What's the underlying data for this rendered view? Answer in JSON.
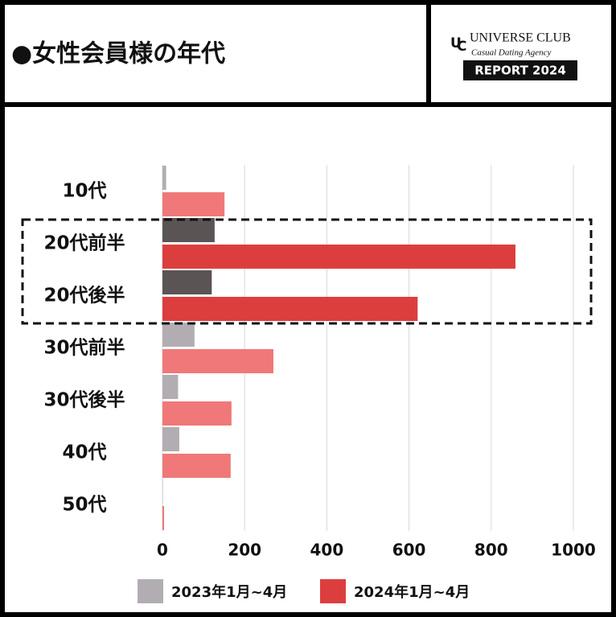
{
  "header": {
    "title": "●女性会員様の年代",
    "brand": "UNIVERSE CLUB",
    "tagline": "Casual Dating Agency",
    "report": "REPORT 2024"
  },
  "chart_data": {
    "type": "hbar",
    "categories": [
      "10代",
      "20代前半",
      "20代後半",
      "30代前半",
      "30代後半",
      "40代",
      "50代"
    ],
    "series": [
      {
        "name": "2023年1月~4月",
        "color": "#b2adb3",
        "colors": [
          "#b2adb3",
          "#5a5454",
          "#5a5454",
          "#b2adb3",
          "#b2adb3",
          "#b2adb3",
          "#b2adb3"
        ],
        "values": [
          9,
          127,
          120,
          78,
          38,
          41,
          1
        ]
      },
      {
        "name": "2024年1月~4月",
        "color": "#dc3e3e",
        "colors": [
          "#f07878",
          "#dc3e3e",
          "#dc3e3e",
          "#f07878",
          "#f07878",
          "#f07878",
          "#f07878"
        ],
        "values": [
          151,
          859,
          621,
          270,
          168,
          166,
          4
        ]
      }
    ],
    "highlight": [
      1,
      2
    ],
    "xlim": [
      0,
      1000
    ],
    "xticks": [
      0,
      200,
      400,
      600,
      800,
      1000
    ],
    "grid": true
  }
}
